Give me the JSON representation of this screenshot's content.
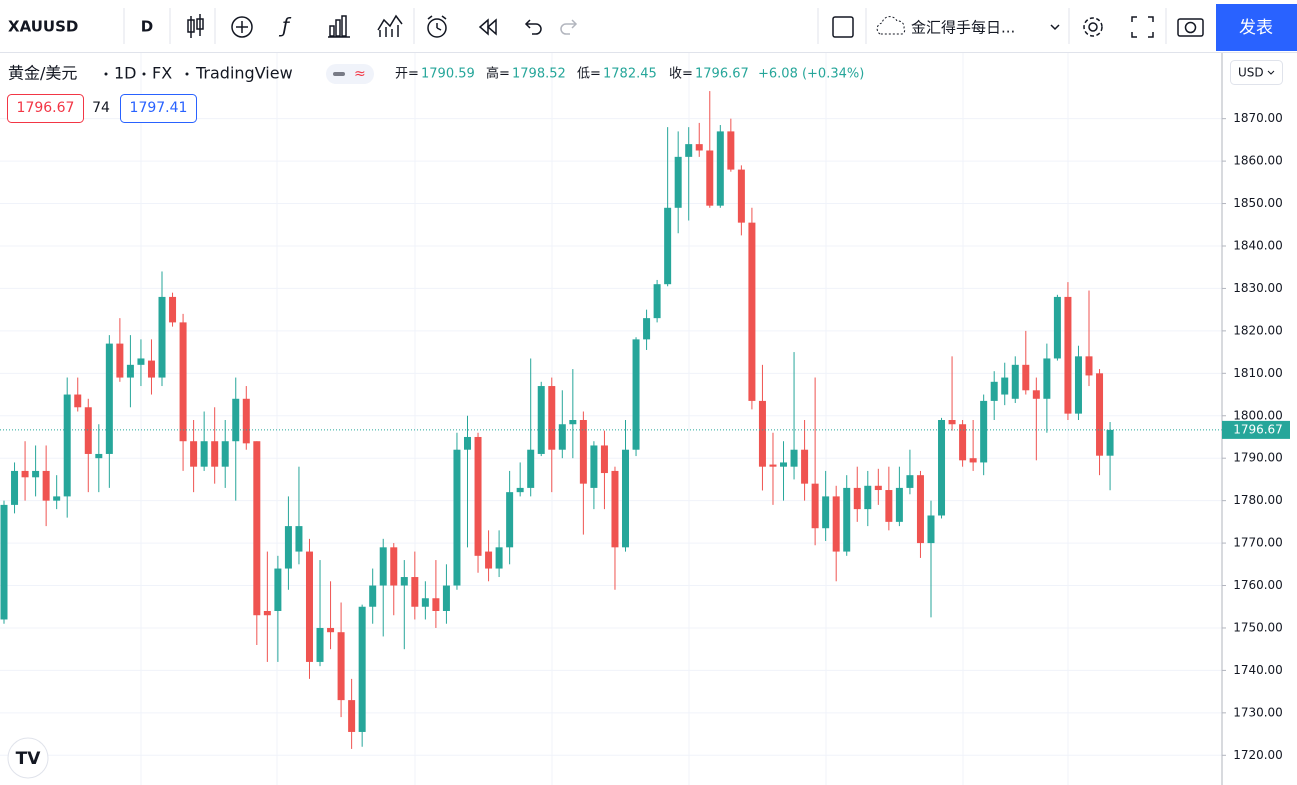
{
  "toolbar": {
    "symbol": "XAUUSD",
    "interval": "D",
    "idea": "金汇得手每日...",
    "publish": "发表"
  },
  "legend": {
    "name": "黄金/美元",
    "interval": "1D",
    "exchange": "FX",
    "source": "TradingView",
    "open_label": "开=",
    "open": "1790.59",
    "high_label": "高=",
    "high": "1798.52",
    "low_label": "低=",
    "low": "1782.45",
    "close_label": "收=",
    "close": "1796.67",
    "change": "+6.08 (+0.34%)"
  },
  "order": {
    "sell": "1796.67",
    "spread": "74",
    "buy": "1797.41"
  },
  "currency": "USD",
  "chart_data": {
    "type": "candlestick",
    "up_color": "#26a69a",
    "down_color": "#ef5350",
    "grid": true,
    "open": [
      1752,
      1779,
      1787,
      1785.5,
      1787,
      1780,
      1781,
      1805,
      1802,
      1790,
      1791,
      1817,
      1809,
      1812,
      1813,
      1809,
      1828,
      1822,
      1794,
      1788,
      1794,
      1788,
      1794,
      1804,
      1794,
      1754,
      1754,
      1764,
      1768,
      1768,
      1742,
      1750,
      1749,
      1733,
      1725.5,
      1755,
      1760,
      1769,
      1760,
      1762,
      1755,
      1757,
      1754,
      1760,
      1792,
      1795,
      1768,
      1764,
      1769,
      1782,
      1783,
      1791,
      1807,
      1792,
      1798,
      1799,
      1783,
      1793,
      1787,
      1769,
      1792,
      1818,
      1823,
      1831,
      1849,
      1861,
      1864,
      1862.5,
      1849.5,
      1867,
      1858,
      1845.5,
      1803.5,
      1788.5,
      1788,
      1788,
      1792,
      1784,
      1773.5,
      1781,
      1768,
      1783,
      1778,
      1783.5,
      1782.5,
      1775,
      1783,
      1786,
      1770,
      1776.5,
      1799,
      1798,
      1790,
      1789,
      1803.5,
      1805,
      1804,
      1812,
      1806,
      1804,
      1813.5,
      1828,
      1800.5,
      1814,
      1810,
      1790.59
    ],
    "high": [
      1780,
      1789,
      1794,
      1793,
      1793,
      1786,
      1809,
      1809,
      1804,
      1798,
      1819,
      1823,
      1819,
      1818,
      1818,
      1834,
      1829,
      1824,
      1799,
      1801,
      1802,
      1799,
      1809,
      1807,
      1794,
      1768,
      1767,
      1781,
      1788,
      1771,
      1766,
      1761,
      1756,
      1738,
      1755.5,
      1764,
      1771,
      1770,
      1766,
      1768,
      1761,
      1766,
      1765,
      1796,
      1800,
      1796,
      1773,
      1773,
      1787,
      1789,
      1813.5,
      1808,
      1809,
      1806,
      1811,
      1801,
      1794,
      1796.5,
      1788,
      1799,
      1818.5,
      1825,
      1832,
      1868,
      1867,
      1868,
      1869,
      1876.5,
      1868.5,
      1870,
      1859,
      1849,
      1812,
      1796,
      1794,
      1815,
      1799,
      1809,
      1787,
      1783.5,
      1786,
      1788,
      1787,
      1787.5,
      1788,
      1788,
      1792,
      1787,
      1780,
      1799.5,
      1814,
      1799,
      1799,
      1805,
      1810.5,
      1812.5,
      1814,
      1820,
      1809,
      1817,
      1828.5,
      1831.5,
      1816.5,
      1829.5,
      1811,
      1798.52
    ],
    "low": [
      1751,
      1777,
      1780,
      1781,
      1774,
      1778,
      1776,
      1801,
      1782,
      1782,
      1783,
      1808,
      1802,
      1807,
      1805,
      1807,
      1821,
      1787,
      1782,
      1787,
      1784,
      1783,
      1780,
      1792,
      1746,
      1742,
      1742,
      1759,
      1765,
      1738,
      1741,
      1745,
      1729,
      1721.5,
      1722,
      1751,
      1748,
      1753,
      1745,
      1752,
      1752,
      1750,
      1751,
      1759,
      1769,
      1763,
      1761,
      1762,
      1765,
      1781,
      1781,
      1790.5,
      1782,
      1790,
      1790,
      1772,
      1778,
      1778,
      1759,
      1768,
      1790.5,
      1815.5,
      1822,
      1830.5,
      1843,
      1846,
      1861,
      1849,
      1849,
      1857.5,
      1842.5,
      1801.5,
      1782.4,
      1779,
      1780,
      1785,
      1780,
      1769.5,
      1770.5,
      1761,
      1767,
      1775,
      1774,
      1779,
      1773,
      1774,
      1781.5,
      1766.5,
      1752.5,
      1775.8,
      1796.5,
      1788,
      1787,
      1786,
      1799,
      1802.5,
      1803,
      1805,
      1789.5,
      1796,
      1813,
      1799,
      1799,
      1807,
      1786,
      1782.45
    ],
    "close": [
      1779,
      1787,
      1785.5,
      1787,
      1780,
      1781,
      1805,
      1802,
      1791,
      1791,
      1817,
      1809,
      1812,
      1813.5,
      1809,
      1828,
      1822,
      1794,
      1788,
      1794,
      1788,
      1794,
      1804,
      1793.5,
      1753,
      1753,
      1764,
      1774,
      1774,
      1742,
      1750,
      1749,
      1733,
      1725.5,
      1755,
      1760,
      1769,
      1760,
      1762,
      1755,
      1757,
      1754,
      1760,
      1792,
      1795,
      1767,
      1764,
      1769,
      1782,
      1783,
      1792,
      1807,
      1792,
      1798,
      1799,
      1784,
      1793,
      1786.5,
      1769,
      1792,
      1818,
      1823,
      1831,
      1849,
      1861,
      1864,
      1862.5,
      1849.5,
      1867,
      1858,
      1845.5,
      1803.5,
      1788,
      1788,
      1789,
      1792,
      1784,
      1773.5,
      1781,
      1768,
      1783,
      1778,
      1783.5,
      1782.5,
      1775,
      1783,
      1786,
      1770,
      1776.5,
      1799,
      1798,
      1789.5,
      1789,
      1803.5,
      1808,
      1809,
      1812,
      1806,
      1804,
      1813.5,
      1828,
      1800.5,
      1814,
      1809.5,
      1790.59,
      1796.67
    ],
    "last_price": 1796.67,
    "ylim": [
      1713,
      1885
    ],
    "yticks": [
      {
        "value": 1720,
        "label": "1720.00"
      },
      {
        "value": 1730,
        "label": "1730.00"
      },
      {
        "value": 1740,
        "label": "1740.00"
      },
      {
        "value": 1750,
        "label": "1750.00"
      },
      {
        "value": 1760,
        "label": "1760.00"
      },
      {
        "value": 1770,
        "label": "1770.00"
      },
      {
        "value": 1780,
        "label": "1780.00"
      },
      {
        "value": 1790,
        "label": "1790.00"
      },
      {
        "value": 1800,
        "label": "1800.00"
      },
      {
        "value": 1810,
        "label": "1810.00"
      },
      {
        "value": 1820,
        "label": "1820.00"
      },
      {
        "value": 1830,
        "label": "1830.00"
      },
      {
        "value": 1840,
        "label": "1840.00"
      },
      {
        "value": 1850,
        "label": "1850.00"
      },
      {
        "value": 1860,
        "label": "1860.00"
      },
      {
        "value": 1870,
        "label": "1870.00"
      }
    ]
  }
}
